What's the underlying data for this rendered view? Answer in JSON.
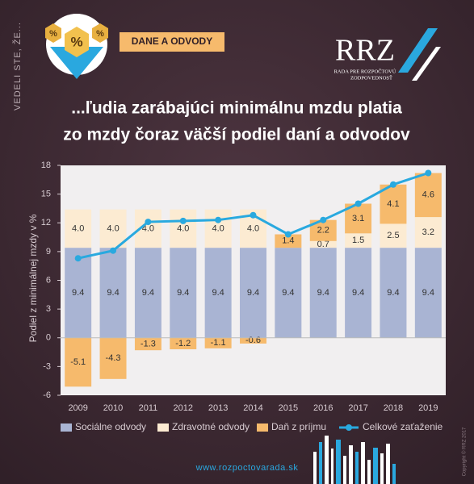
{
  "header": {
    "side_text": "VEDELI STE, ŽE...",
    "icon_symbol": "%",
    "badge": "DANE A ODVODY",
    "logo": "RRZ",
    "logo_subtitle_1": "RADA PRE ROZPOČTOVÚ",
    "logo_subtitle_2": "ZODPOVEDNOSŤ",
    "title_1": "...ľudia zarábajúci minimálnu mzdu platia",
    "title_2": "zo mzdy čoraz väčší podiel daní a odvodov"
  },
  "chart_data": {
    "type": "bar",
    "stacked": true,
    "ylabel": "Podiel z minimálnej mzdy v %",
    "categories": [
      "2009",
      "2010",
      "2011",
      "2012",
      "2013",
      "2014",
      "2015",
      "2016",
      "2017",
      "2018",
      "2019"
    ],
    "series": [
      {
        "name": "Sociálne odvody",
        "color": "#a9b4d3",
        "values": [
          9.4,
          9.4,
          9.4,
          9.4,
          9.4,
          9.4,
          9.4,
          9.4,
          9.4,
          9.4,
          9.4
        ]
      },
      {
        "name": "Zdravotné odvody",
        "color": "#fcebd2",
        "values": [
          4,
          4,
          4,
          4,
          4,
          4,
          null,
          0.7,
          1.5,
          2.5,
          3.2
        ],
        "value_labels": [
          "4.0",
          "4.0",
          "4.0",
          "4.0",
          "4.0",
          "4.0",
          null,
          "0.7",
          "1.5",
          "2.5",
          "3.2"
        ]
      },
      {
        "name": "Daň z príjmu",
        "color": "#f6ba6c",
        "values": [
          -5.1,
          -4.3,
          -1.3,
          -1.2,
          -1.1,
          -0.6,
          1.4,
          2.2,
          3.1,
          4.1,
          4.6
        ]
      },
      {
        "name": "Celkové zaťaženie",
        "type": "line",
        "color": "#29a9df",
        "values": [
          8.3,
          9.1,
          12.1,
          12.2,
          12.3,
          12.8,
          10.8,
          12.3,
          14.0,
          16.0,
          17.2
        ]
      }
    ],
    "ylim": [
      -6,
      18
    ],
    "yticks": [
      -6,
      -3,
      0,
      3,
      6,
      9,
      12,
      15,
      18
    ],
    "grid": false
  },
  "footer": {
    "url": "www.rozpoctovarada.sk",
    "copyright": "Copyright © RRZ 2017"
  }
}
